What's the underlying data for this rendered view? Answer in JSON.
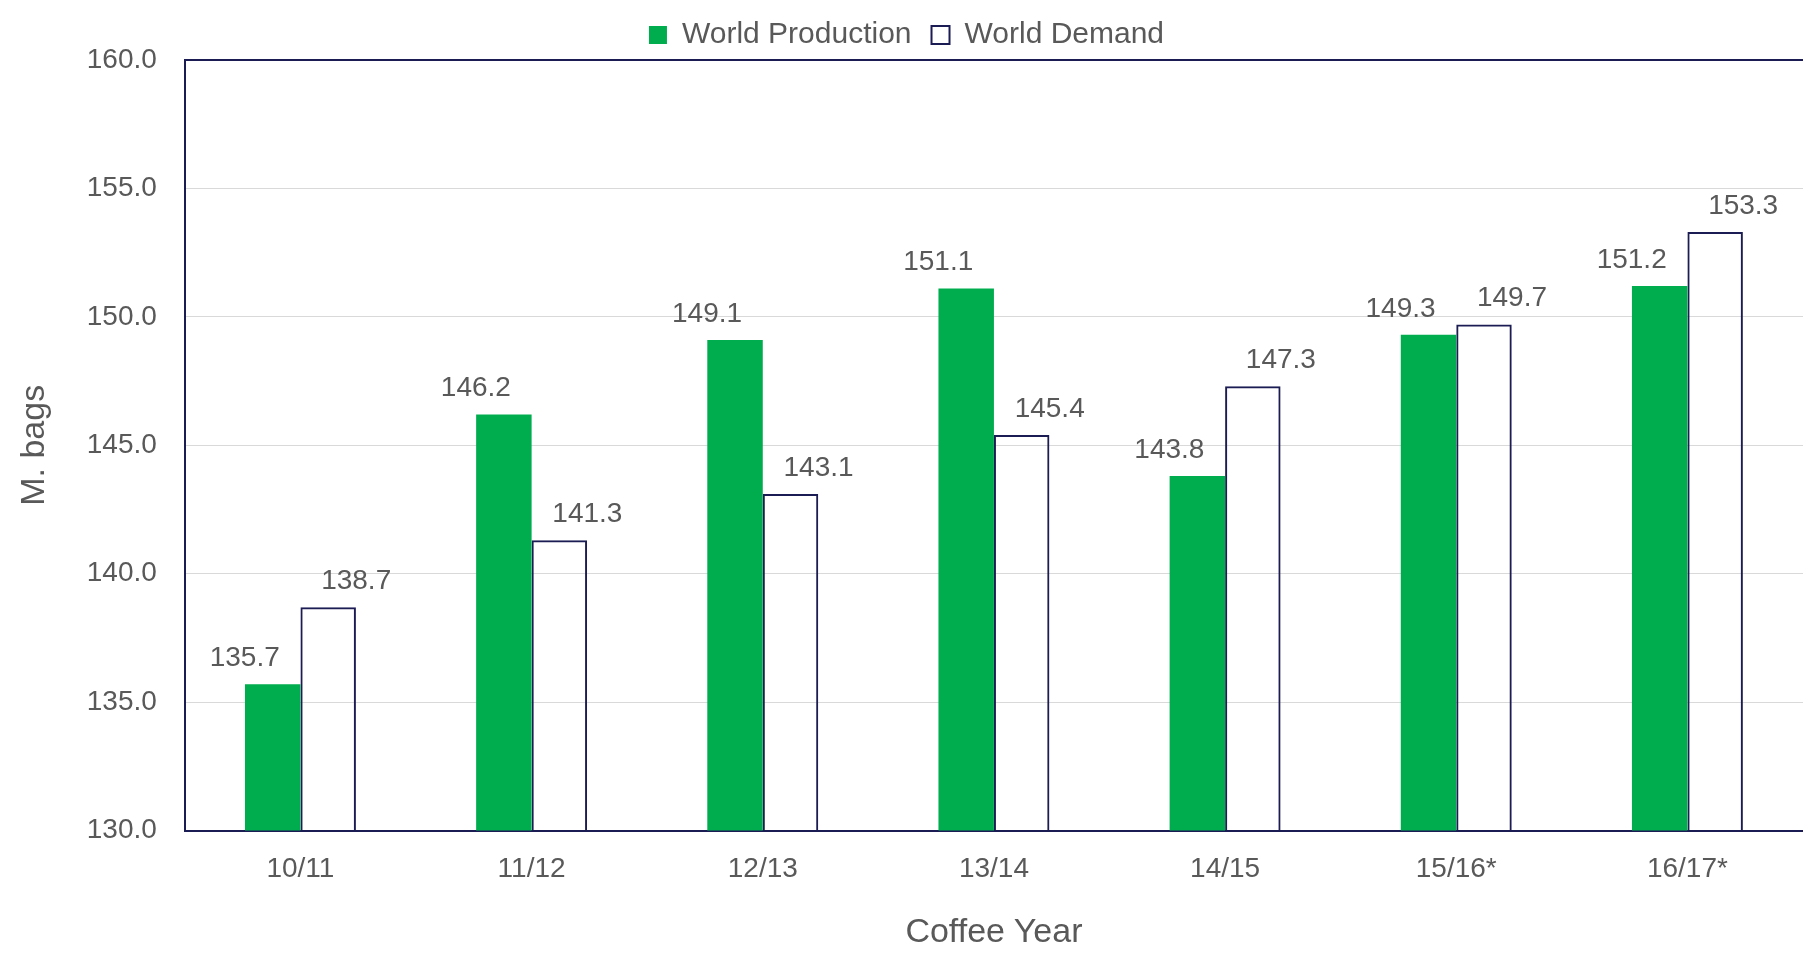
{
  "chart_data": {
    "type": "bar",
    "xlabel": "Coffee Year",
    "ylabel": "M. bags",
    "categories": [
      "10/11",
      "11/12",
      "12/13",
      "13/14",
      "14/15",
      "15/16*",
      "16/17*"
    ],
    "series": [
      {
        "name": "World Production",
        "color": "#00ad4e",
        "values": [
          135.7,
          146.2,
          149.1,
          151.1,
          143.8,
          149.3,
          151.2
        ]
      },
      {
        "name": "World Demand",
        "color": "#1c1c54",
        "values": [
          138.7,
          141.3,
          143.1,
          145.4,
          147.3,
          149.7,
          153.3
        ]
      }
    ],
    "ylim": [
      130,
      160
    ],
    "yticks": [
      {
        "value": 130,
        "label": "130.0"
      },
      {
        "value": 135,
        "label": "135.0"
      },
      {
        "value": 140,
        "label": "140.0"
      },
      {
        "value": 145,
        "label": "145.0"
      },
      {
        "value": 150,
        "label": "150.0"
      },
      {
        "value": 155,
        "label": "155.0"
      },
      {
        "value": 160,
        "label": "160.0"
      }
    ],
    "grid": "y",
    "legend": "top",
    "data_labels": true
  }
}
